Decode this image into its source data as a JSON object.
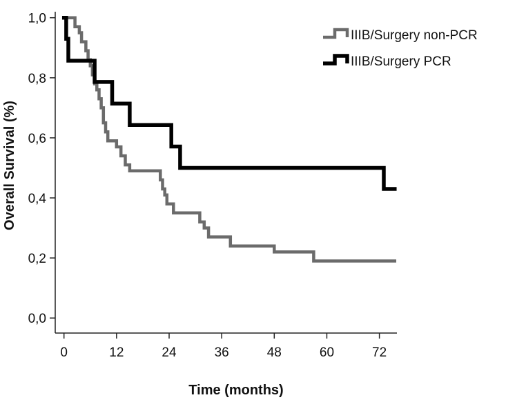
{
  "chart_data": {
    "type": "line",
    "step": true,
    "xlabel": "Time (months)",
    "ylabel": "Overall Survival (%)",
    "xlim": [
      -2,
      76
    ],
    "ylim": [
      -0.05,
      1.02
    ],
    "x_ticks": [
      0,
      12,
      24,
      36,
      48,
      60,
      72
    ],
    "x_tick_labels": [
      "0",
      "12",
      "24",
      "36",
      "48",
      "60",
      "72"
    ],
    "y_ticks": [
      0.0,
      0.2,
      0.4,
      0.6,
      0.8,
      1.0
    ],
    "y_tick_labels": [
      "0,0",
      "0,2",
      "0,4",
      "0,6",
      "0,8",
      "1,0"
    ],
    "grid": false,
    "legend_position": "top-right",
    "series": [
      {
        "name": "IIIB/Surgery non-PCR",
        "color": "#6b6b6b",
        "points": [
          [
            0,
            1.0
          ],
          [
            2.5,
            0.97
          ],
          [
            3.5,
            0.95
          ],
          [
            4,
            0.92
          ],
          [
            5,
            0.89
          ],
          [
            5.5,
            0.86
          ],
          [
            6,
            0.84
          ],
          [
            6.5,
            0.81
          ],
          [
            7,
            0.78
          ],
          [
            7.5,
            0.76
          ],
          [
            8,
            0.73
          ],
          [
            8.5,
            0.7
          ],
          [
            9,
            0.65
          ],
          [
            9.5,
            0.62
          ],
          [
            10,
            0.59
          ],
          [
            12,
            0.57
          ],
          [
            13,
            0.54
          ],
          [
            14,
            0.51
          ],
          [
            15,
            0.49
          ],
          [
            22,
            0.46
          ],
          [
            22.5,
            0.43
          ],
          [
            23,
            0.41
          ],
          [
            23.5,
            0.38
          ],
          [
            25,
            0.35
          ],
          [
            31,
            0.32
          ],
          [
            32,
            0.3
          ],
          [
            33,
            0.27
          ],
          [
            38,
            0.24
          ],
          [
            48,
            0.22
          ],
          [
            57,
            0.19
          ],
          [
            75.5,
            0.19
          ]
        ]
      },
      {
        "name": "IIIB/Surgery PCR",
        "color": "#000000",
        "points": [
          [
            0,
            1.0
          ],
          [
            0.5,
            0.93
          ],
          [
            1,
            0.857
          ],
          [
            7,
            0.786
          ],
          [
            11,
            0.714
          ],
          [
            15,
            0.643
          ],
          [
            24.5,
            0.571
          ],
          [
            26.5,
            0.5
          ],
          [
            73,
            0.43
          ],
          [
            75.5,
            0.43
          ]
        ]
      }
    ]
  }
}
